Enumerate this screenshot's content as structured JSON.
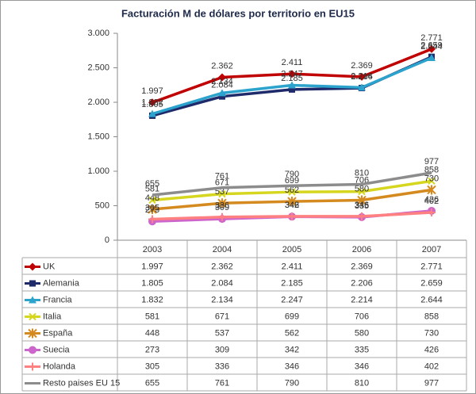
{
  "chart_data": {
    "type": "line",
    "title": "Facturación M de dólares por territorio en EU15",
    "categories": [
      "2003",
      "2004",
      "2005",
      "2006",
      "2007"
    ],
    "ylim": [
      0,
      3000
    ],
    "yticks": [
      0,
      500,
      {
        "value": 1000,
        "label": "1.000"
      },
      {
        "value": 1500,
        "label": "1.500"
      },
      {
        "value": 2000,
        "label": "2.000"
      },
      {
        "value": 2500,
        "label": "2.500"
      },
      {
        "value": 3000,
        "label": "3.000"
      }
    ],
    "grid": false,
    "series": [
      {
        "name": "UK",
        "color": "#c00000",
        "marker": "diamond",
        "values": [
          1997,
          2362,
          2411,
          2369,
          2771
        ],
        "value_labels": [
          "1.997",
          "2.362",
          "2.411",
          "2.369",
          "2.771"
        ]
      },
      {
        "name": "Alemania",
        "color": "#1f2a6b",
        "marker": "square",
        "values": [
          1805,
          2084,
          2185,
          2206,
          2659
        ],
        "value_labels": [
          "1.805",
          "2.084",
          "2.185",
          "2.206",
          "2.659"
        ]
      },
      {
        "name": "Francia",
        "color": "#2ba3cc",
        "marker": "triangle",
        "values": [
          1832,
          2134,
          2247,
          2214,
          2644
        ],
        "value_labels": [
          "1.832",
          "2.134",
          "2.247",
          "2.214",
          "2.644"
        ]
      },
      {
        "name": "Italia",
        "color": "#d6d61e",
        "marker": "x",
        "values": [
          581,
          671,
          699,
          706,
          858
        ]
      },
      {
        "name": "España",
        "color": "#d48a1e",
        "marker": "star",
        "values": [
          448,
          537,
          562,
          580,
          730
        ]
      },
      {
        "name": "Suecia",
        "color": "#cc66cc",
        "marker": "circle",
        "values": [
          273,
          309,
          342,
          335,
          426
        ]
      },
      {
        "name": "Holanda",
        "color": "#ff8080",
        "marker": "plus",
        "values": [
          305,
          336,
          346,
          346,
          402
        ]
      },
      {
        "name": "Resto paises EU 15",
        "color": "#8c8c8c",
        "marker": "none",
        "values": [
          655,
          761,
          790,
          810,
          977
        ]
      }
    ]
  }
}
